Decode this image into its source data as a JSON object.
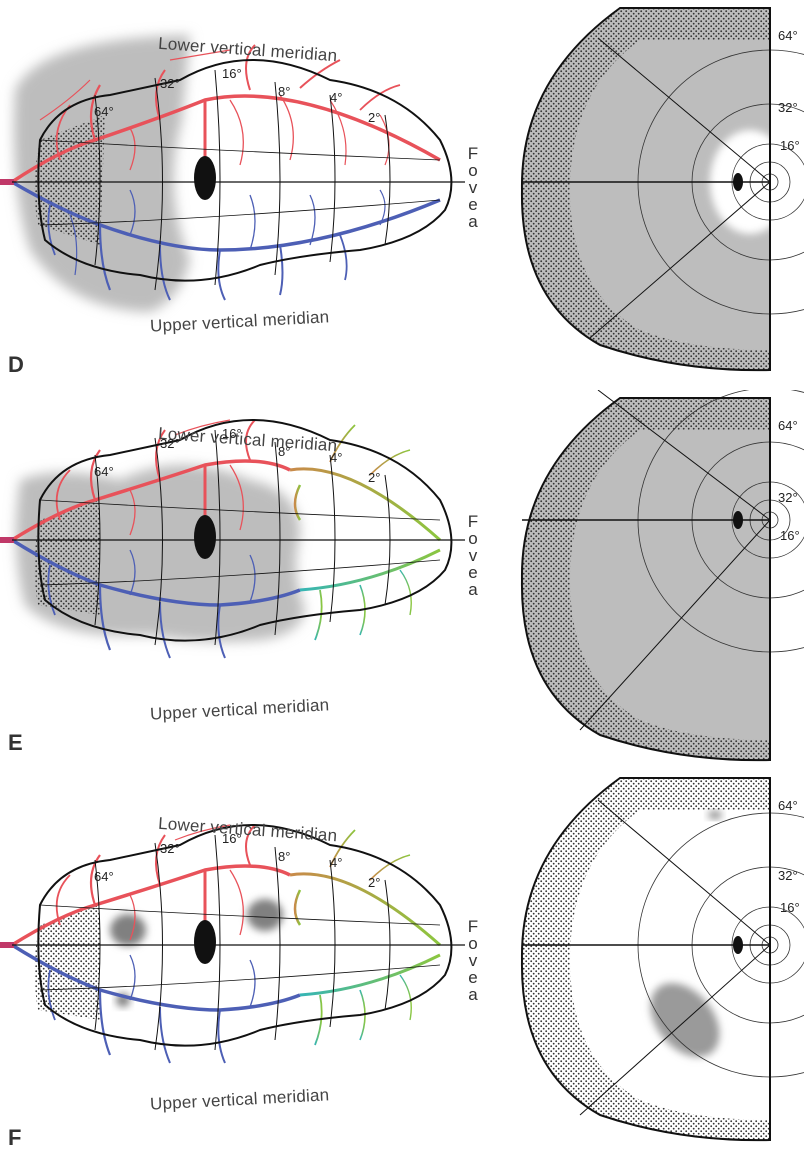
{
  "panels": [
    {
      "id": "D",
      "label": "D",
      "lower_meridian": "Lower vertical meridian",
      "upper_meridian": "Upper vertical meridian",
      "fovea_letters": [
        "F",
        "o",
        "v",
        "e",
        "a"
      ],
      "eccentricities": [
        "64°",
        "32°",
        "16°",
        "8°",
        "4°",
        "2°"
      ],
      "field_eccentricities": [
        "64°",
        "32°",
        "16°"
      ],
      "colors": {
        "upper": "#e8525a",
        "lower": "#4d5fb5",
        "artery_start": "#c03868"
      }
    },
    {
      "id": "E",
      "label": "E",
      "lower_meridian": "Lower vertical meridian",
      "upper_meridian": "Upper vertical meridian",
      "fovea_letters": [
        "F",
        "o",
        "v",
        "e",
        "a"
      ],
      "eccentricities": [
        "64°",
        "32°",
        "16°",
        "8°",
        "4°",
        "2°"
      ],
      "field_eccentricities": [
        "64°",
        "32°",
        "16°"
      ],
      "colors": {
        "upper": "#e8525a",
        "lower": "#4d5fb5",
        "foveal": "#8cc63f",
        "transition": "#35b5b5"
      }
    },
    {
      "id": "F",
      "label": "F",
      "lower_meridian": "Lower vertical meridian",
      "upper_meridian": "Upper vertical meridian",
      "fovea_letters": [
        "F",
        "o",
        "v",
        "e",
        "a"
      ],
      "eccentricities": [
        "64°",
        "32°",
        "16°",
        "8°",
        "4°",
        "2°"
      ],
      "field_eccentricities": [
        "64°",
        "32°",
        "16°"
      ],
      "colors": {
        "upper": "#e8525a",
        "lower": "#4d5fb5",
        "foveal": "#8cc63f",
        "transition": "#35b5b5"
      }
    }
  ]
}
